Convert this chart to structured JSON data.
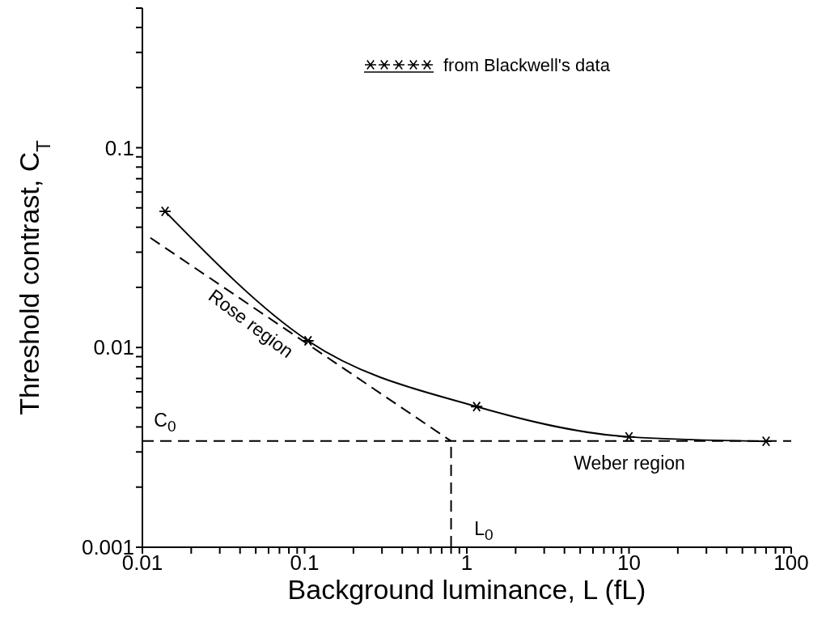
{
  "chart_data": {
    "type": "line",
    "xlabel": "Background luminance, L (fL)",
    "ylabel": "Threshold contrast, C$_{T}$",
    "log": "xy",
    "grid": false,
    "legend": "top right",
    "xlim": [
      0.01,
      100
    ],
    "ylim": [
      0.001,
      0.5
    ],
    "xticks": [
      0.01,
      {
        "value": 0.02,
        "label": null
      },
      {
        "value": 0.03,
        "label": null
      },
      {
        "value": 0.04,
        "label": null
      },
      {
        "value": 0.05,
        "label": null
      },
      {
        "value": 0.06,
        "label": null
      },
      {
        "value": 0.07,
        "label": null
      },
      {
        "value": 0.08,
        "label": null
      },
      {
        "value": 0.09,
        "label": null
      },
      0.1,
      {
        "value": 0.2,
        "label": null
      },
      {
        "value": 0.3,
        "label": null
      },
      {
        "value": 0.4,
        "label": null
      },
      {
        "value": 0.5,
        "label": null
      },
      {
        "value": 0.6,
        "label": null
      },
      {
        "value": 0.7,
        "label": null
      },
      {
        "value": 0.8,
        "label": null
      },
      {
        "value": 0.9,
        "label": null
      },
      1,
      {
        "value": 2,
        "label": null
      },
      {
        "value": 3,
        "label": null
      },
      {
        "value": 4,
        "label": null
      },
      {
        "value": 5,
        "label": null
      },
      {
        "value": 6,
        "label": null
      },
      {
        "value": 7,
        "label": null
      },
      {
        "value": 8,
        "label": null
      },
      {
        "value": 9,
        "label": null
      },
      10,
      {
        "value": 20,
        "label": null
      },
      {
        "value": 30,
        "label": null
      },
      {
        "value": 40,
        "label": null
      },
      {
        "value": 50,
        "label": null
      },
      {
        "value": 60,
        "label": null
      },
      {
        "value": 70,
        "label": null
      },
      {
        "value": 80,
        "label": null
      },
      {
        "value": 90,
        "label": null
      },
      100
    ],
    "yticks": [
      0.001,
      {
        "value": 0.002,
        "label": null
      },
      {
        "value": 0.003,
        "label": null
      },
      {
        "value": 0.004,
        "label": null
      },
      {
        "value": 0.005,
        "label": null
      },
      {
        "value": 0.006,
        "label": null
      },
      {
        "value": 0.007,
        "label": null
      },
      {
        "value": 0.008,
        "label": null
      },
      {
        "value": 0.009,
        "label": null
      },
      0.01,
      {
        "value": 0.02,
        "label": null
      },
      {
        "value": 0.03,
        "label": null
      },
      {
        "value": 0.04,
        "label": null
      },
      {
        "value": 0.05,
        "label": null
      },
      {
        "value": 0.06,
        "label": null
      },
      {
        "value": 0.07,
        "label": null
      },
      {
        "value": 0.08,
        "label": null
      },
      {
        "value": 0.09,
        "label": null
      },
      0.1,
      {
        "value": 0.2,
        "label": null
      },
      {
        "value": 0.3,
        "label": null
      },
      {
        "value": 0.4,
        "label": null
      },
      {
        "value": 0.5,
        "label": null
      }
    ],
    "series": [
      {
        "name": "from Blackwell's data",
        "color": "#000000",
        "marker": "cross",
        "line_style": "solid",
        "x": [
          0.0138,
          0.105,
          1.15,
          10,
          70
        ],
        "values": [
          0.048,
          0.0108,
          0.00506,
          0.00357,
          0.00339
        ]
      },
      {
        "color": "#000000",
        "marker": "none",
        "line_style": "dashed",
        "x": [
          0.0112,
          0.8
        ],
        "values": [
          0.0354,
          0.0034
        ]
      },
      {
        "color": "#000000",
        "marker": "none",
        "line_style": "dashed",
        "x": [
          0.01,
          100
        ],
        "values": [
          0.0034,
          0.0034
        ]
      },
      {
        "color": "#000000",
        "marker": "none",
        "line_style": "dashed",
        "x": [
          0.8,
          0.8
        ],
        "values": [
          0.001,
          0.0034
        ]
      }
    ],
    "annotations": [
      "Rose region",
      "Weber region",
      "C$_{0}$",
      "L$_{0}$"
    ]
  }
}
